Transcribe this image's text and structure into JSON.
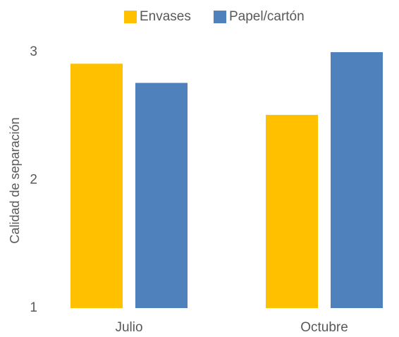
{
  "chart_data": {
    "type": "bar",
    "title": "",
    "xlabel": "",
    "ylabel": "Calidad de separación",
    "categories": [
      "Julio",
      "Octubre"
    ],
    "series": [
      {
        "name": "Envases",
        "color": "#FFC000",
        "values": [
          2.91,
          2.51
        ]
      },
      {
        "name": "Papel/cartón",
        "color": "#4F81BD",
        "values": [
          2.76,
          3.0
        ]
      }
    ],
    "ylim": [
      1,
      3
    ],
    "yticks": [
      "1",
      "2",
      "3"
    ],
    "grid": false,
    "legend_position": "top-center"
  }
}
